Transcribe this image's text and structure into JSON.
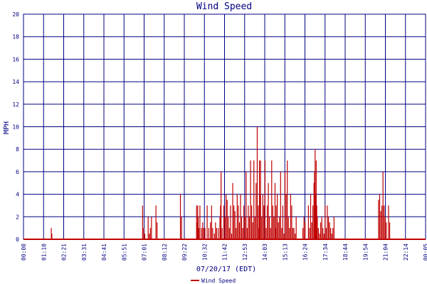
{
  "chart_data": {
    "type": "bar",
    "title": "Wind Speed",
    "xlabel": "07/20/17 (EDT)",
    "ylabel": "MPH",
    "ylim": [
      0,
      20
    ],
    "y_ticks": [
      "0",
      "2",
      "4",
      "6",
      "8",
      "10",
      "12",
      "14",
      "16",
      "18",
      "20"
    ],
    "x_ticks": [
      "00:00",
      "01:10",
      "02:21",
      "03:31",
      "04:41",
      "05:51",
      "07:01",
      "08:12",
      "09:22",
      "10:32",
      "11:42",
      "12:53",
      "14:03",
      "15:13",
      "16:24",
      "17:34",
      "18:44",
      "19:54",
      "21:04",
      "22:14",
      "00:05"
    ],
    "grid": true,
    "legend_position": "bottom-center",
    "series": [
      {
        "name": "Wind Speed",
        "color": "#c00000",
        "x_unit": "minutes since 00:00",
        "x": [
          100,
          102,
          428,
          432,
          436,
          448,
          452,
          456,
          460,
          476,
          480,
          564,
          568,
          622,
          624,
          626,
          628,
          630,
          634,
          640,
          644,
          648,
          652,
          660,
          666,
          672,
          676,
          680,
          686,
          690,
          694,
          700,
          706,
          708,
          710,
          714,
          720,
          724,
          728,
          732,
          736,
          740,
          744,
          748,
          752,
          756,
          760,
          764,
          768,
          772,
          776,
          780,
          784,
          788,
          792,
          796,
          800,
          804,
          808,
          812,
          816,
          820,
          824,
          828,
          832,
          836,
          840,
          844,
          846,
          848,
          850,
          852,
          856,
          860,
          864,
          868,
          872,
          876,
          880,
          884,
          888,
          892,
          896,
          900,
          904,
          906,
          908,
          912,
          916,
          920,
          924,
          928,
          932,
          936,
          940,
          944,
          948,
          952,
          956,
          960,
          964,
          968,
          972,
          976,
          980,
          1004,
          1008,
          1012,
          1024,
          1028,
          1032,
          1036,
          1040,
          1044,
          1046,
          1048,
          1050,
          1052,
          1054,
          1056,
          1060,
          1064,
          1068,
          1072,
          1076,
          1080,
          1084,
          1088,
          1092,
          1096,
          1100,
          1104,
          1108,
          1112,
          1116,
          1276,
          1280,
          1284,
          1288,
          1292,
          1296,
          1300,
          1304,
          1312,
          1316
        ],
        "values": [
          1,
          0.5,
          3,
          1,
          0.5,
          2,
          0.5,
          1,
          2,
          3,
          1.5,
          4,
          2,
          3,
          1.5,
          3,
          2,
          1,
          3,
          1,
          1.5,
          1,
          1,
          3,
          1,
          1.5,
          3,
          1,
          0.5,
          1.5,
          1,
          1,
          2,
          3,
          6,
          1,
          3,
          2,
          4,
          3.5,
          2,
          1,
          3,
          0.5,
          5,
          3,
          2.5,
          1,
          4,
          3,
          1.5,
          4,
          2,
          1,
          3,
          2,
          6,
          1,
          3,
          2,
          7,
          3,
          1.5,
          7,
          2,
          5,
          10,
          3,
          1,
          7,
          4,
          7,
          2,
          4,
          3,
          7,
          1,
          3,
          5,
          2,
          1,
          7,
          3,
          2,
          5,
          1,
          3,
          4,
          1.5,
          2,
          6,
          1,
          3,
          0.5,
          6,
          4,
          7,
          2,
          1,
          4,
          3,
          1,
          1,
          0.5,
          2,
          1,
          2,
          1.5,
          3,
          1,
          4,
          1.5,
          3,
          5,
          6,
          8,
          4,
          7,
          3,
          2,
          1,
          0.5,
          1.5,
          2,
          1,
          0.5,
          3,
          1,
          3,
          2,
          1.5,
          1,
          0.5,
          1,
          2,
          3.5,
          4,
          2.5,
          3,
          6,
          3,
          2,
          1.5,
          3,
          1.5
        ]
      }
    ]
  }
}
